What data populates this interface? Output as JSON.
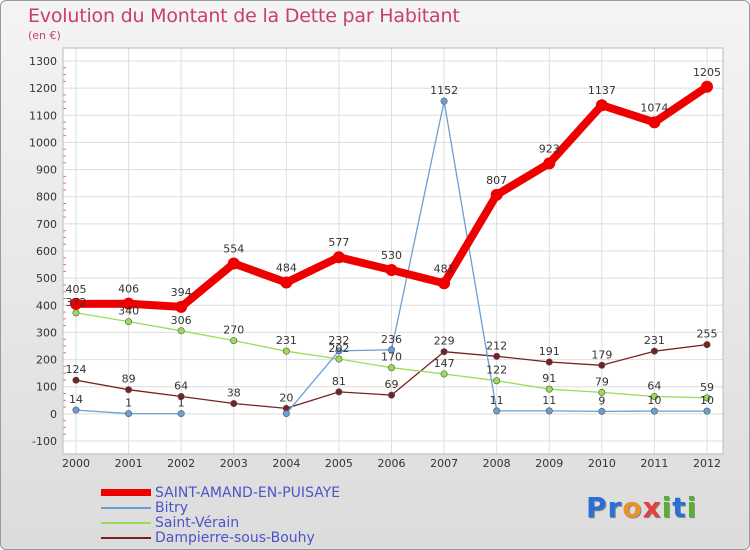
{
  "chart_data": {
    "type": "line",
    "title": "Evolution du Montant de la Dette par Habitant",
    "subtitle": "(en €)",
    "x": [
      "2000",
      "2001",
      "2002",
      "2003",
      "2004",
      "2005",
      "2006",
      "2007",
      "2008",
      "2009",
      "2010",
      "2011",
      "2012"
    ],
    "ylim": [
      -100,
      1300
    ],
    "yticks": [
      -100,
      0,
      100,
      200,
      300,
      400,
      500,
      600,
      700,
      800,
      900,
      1000,
      1100,
      1200,
      1300
    ],
    "grid": true,
    "legend": "bottom-left",
    "series": [
      {
        "name": "SAINT-AMAND-EN-PUISAYE",
        "color": "#ee0000",
        "values": [
          405,
          406,
          394,
          554,
          484,
          577,
          530,
          481,
          807,
          923,
          1137,
          1074,
          1205
        ],
        "labels": [
          "405",
          "406",
          "394",
          "554",
          "484",
          "577",
          "530",
          "481",
          "807",
          "923",
          "1137",
          "1074",
          "1205"
        ]
      },
      {
        "name": "Bitry",
        "color": "#6a9fd4",
        "values": [
          14,
          1,
          1,
          null,
          1,
          232,
          236,
          1152,
          11,
          11,
          9,
          10,
          10
        ],
        "labels": [
          "14",
          "1",
          "1",
          "",
          "",
          "232",
          "236",
          "1152",
          "11",
          "11",
          "9",
          "10",
          "10"
        ]
      },
      {
        "name": "Saint-Vérain",
        "color": "#99dd55",
        "values": [
          372,
          340,
          306,
          270,
          231,
          202,
          170,
          147,
          122,
          91,
          79,
          64,
          59
        ],
        "labels": [
          "372",
          "340",
          "306",
          "270",
          "231",
          "202",
          "170",
          "147",
          "122",
          "91",
          "79",
          "64",
          "59"
        ]
      },
      {
        "name": "Dampierre-sous-Bouhy",
        "color": "#772222",
        "values": [
          124,
          89,
          64,
          38,
          20,
          81,
          69,
          229,
          212,
          191,
          179,
          231,
          255
        ],
        "labels": [
          "124",
          "89",
          "64",
          "38",
          "20",
          "81",
          "69",
          "229",
          "212",
          "191",
          "179",
          "231",
          "255"
        ]
      }
    ]
  },
  "logo": {
    "letters": [
      {
        "char": "P",
        "color": "#2a6fd6"
      },
      {
        "char": "r",
        "color": "#2a6fd6"
      },
      {
        "char": "o",
        "color": "#e8922a"
      },
      {
        "char": "x",
        "color": "#e04040"
      },
      {
        "char": "i",
        "color": "#58b030"
      },
      {
        "char": "t",
        "color": "#2a6fd6"
      },
      {
        "char": "i",
        "color": "#58b030"
      }
    ]
  }
}
